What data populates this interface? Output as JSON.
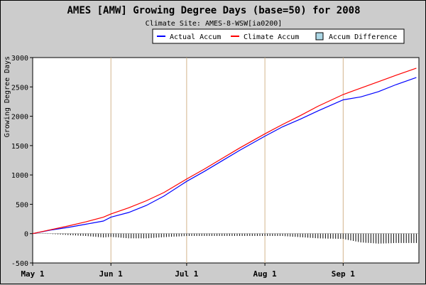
{
  "chart_data": {
    "type": "line",
    "title": "AMES [AMW] Growing Degree Days (base=50) for 2008",
    "subtitle": "Climate Site: AMES-8-WSW[ia0200]",
    "ylabel": "Growing Degree Days",
    "xlabel": "",
    "ylim": [
      -500,
      3000
    ],
    "yticks": [
      -500,
      0,
      500,
      1000,
      1500,
      2000,
      2500,
      3000
    ],
    "x_start": "2008-05-01",
    "x_end": "2008-10-01",
    "xticks": [
      {
        "date": "2008-05-01",
        "label": "May 1"
      },
      {
        "date": "2008-06-01",
        "label": "Jun 1"
      },
      {
        "date": "2008-07-01",
        "label": "Jul 1"
      },
      {
        "date": "2008-08-01",
        "label": "Aug 1"
      },
      {
        "date": "2008-09-01",
        "label": "Sep 1"
      }
    ],
    "legend_placement": "top-right",
    "grid": "vertical-month-lines",
    "series": [
      {
        "name": "Actual Accum",
        "kind": "line",
        "color": "#0000ff",
        "points": [
          [
            "2008-05-01",
            0
          ],
          [
            "2008-05-08",
            60
          ],
          [
            "2008-05-15",
            105
          ],
          [
            "2008-05-22",
            160
          ],
          [
            "2008-05-29",
            215
          ],
          [
            "2008-06-01",
            280
          ],
          [
            "2008-06-08",
            360
          ],
          [
            "2008-06-15",
            480
          ],
          [
            "2008-06-22",
            640
          ],
          [
            "2008-07-01",
            890
          ],
          [
            "2008-07-08",
            1060
          ],
          [
            "2008-07-15",
            1240
          ],
          [
            "2008-07-22",
            1420
          ],
          [
            "2008-08-01",
            1660
          ],
          [
            "2008-08-08",
            1820
          ],
          [
            "2008-08-15",
            1950
          ],
          [
            "2008-08-22",
            2090
          ],
          [
            "2008-09-01",
            2280
          ],
          [
            "2008-09-08",
            2330
          ],
          [
            "2008-09-15",
            2420
          ],
          [
            "2008-09-22",
            2540
          ],
          [
            "2008-09-30",
            2660
          ]
        ]
      },
      {
        "name": "Climate Accum",
        "kind": "line",
        "color": "#ff0000",
        "points": [
          [
            "2008-05-01",
            0
          ],
          [
            "2008-05-08",
            65
          ],
          [
            "2008-05-15",
            130
          ],
          [
            "2008-05-22",
            200
          ],
          [
            "2008-05-29",
            280
          ],
          [
            "2008-06-01",
            335
          ],
          [
            "2008-06-08",
            440
          ],
          [
            "2008-06-15",
            560
          ],
          [
            "2008-06-22",
            700
          ],
          [
            "2008-07-01",
            930
          ],
          [
            "2008-07-08",
            1100
          ],
          [
            "2008-07-15",
            1280
          ],
          [
            "2008-07-22",
            1460
          ],
          [
            "2008-08-01",
            1700
          ],
          [
            "2008-08-08",
            1860
          ],
          [
            "2008-08-15",
            2010
          ],
          [
            "2008-08-22",
            2170
          ],
          [
            "2008-09-01",
            2370
          ],
          [
            "2008-09-08",
            2480
          ],
          [
            "2008-09-15",
            2590
          ],
          [
            "2008-09-22",
            2700
          ],
          [
            "2008-09-30",
            2820
          ]
        ]
      },
      {
        "name": "Accum Difference",
        "kind": "bar",
        "color": "#add8e6",
        "bar_color": "#000000",
        "points": [
          [
            "2008-05-01",
            0
          ],
          [
            "2008-05-08",
            -5
          ],
          [
            "2008-05-15",
            -25
          ],
          [
            "2008-05-22",
            -40
          ],
          [
            "2008-05-29",
            -65
          ],
          [
            "2008-06-01",
            -55
          ],
          [
            "2008-06-08",
            -80
          ],
          [
            "2008-06-15",
            -80
          ],
          [
            "2008-06-22",
            -60
          ],
          [
            "2008-07-01",
            -40
          ],
          [
            "2008-07-08",
            -40
          ],
          [
            "2008-07-15",
            -40
          ],
          [
            "2008-07-22",
            -40
          ],
          [
            "2008-08-01",
            -40
          ],
          [
            "2008-08-08",
            -40
          ],
          [
            "2008-08-15",
            -60
          ],
          [
            "2008-08-22",
            -80
          ],
          [
            "2008-09-01",
            -90
          ],
          [
            "2008-09-08",
            -150
          ],
          [
            "2008-09-15",
            -170
          ],
          [
            "2008-09-22",
            -160
          ],
          [
            "2008-09-30",
            -160
          ]
        ]
      }
    ]
  }
}
